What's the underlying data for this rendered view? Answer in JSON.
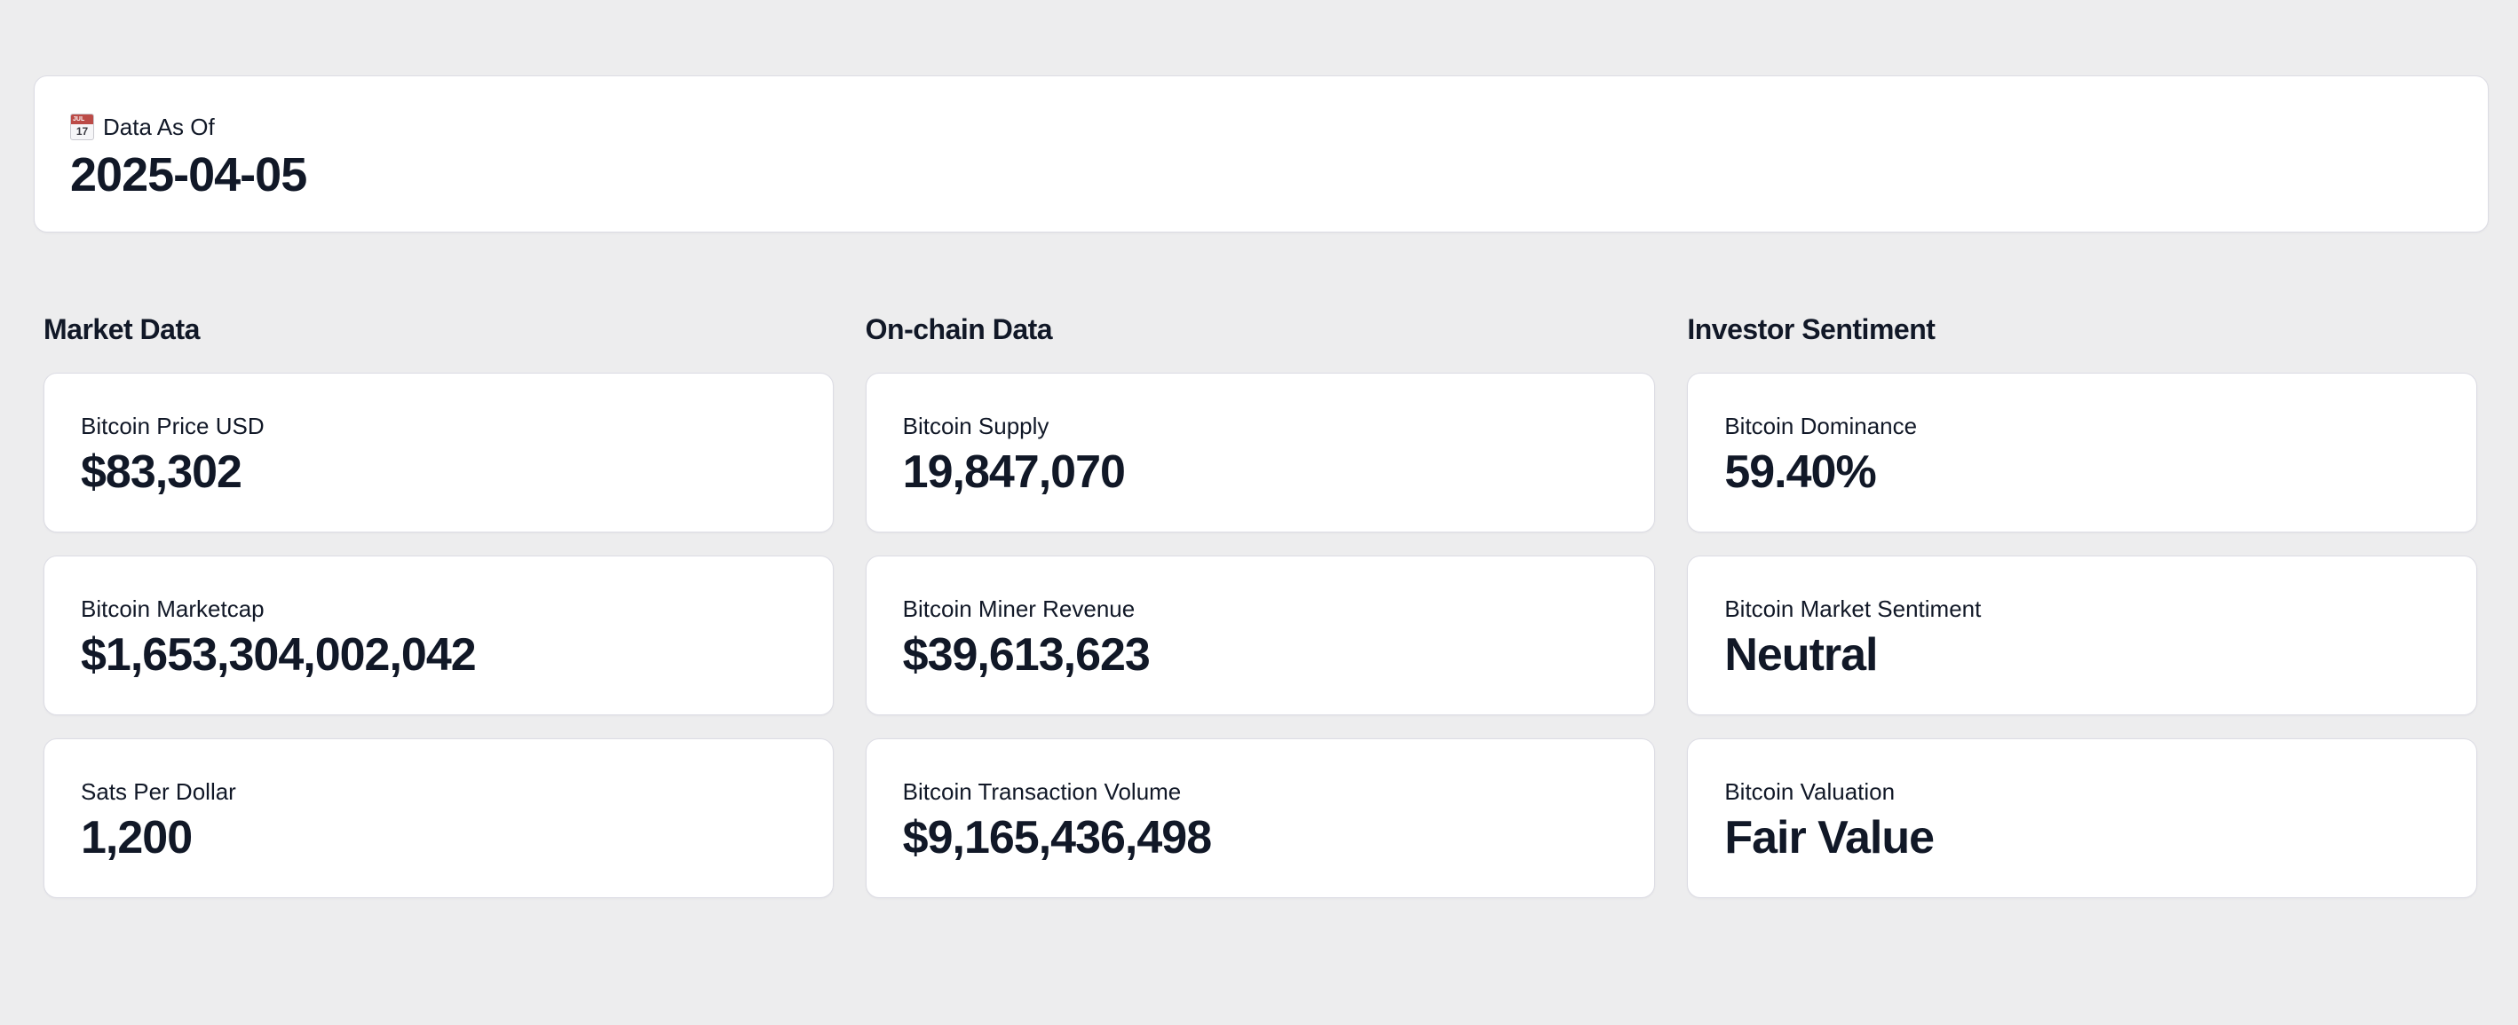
{
  "header": {
    "label": "Data As Of",
    "value": "2025-04-05",
    "icon": "calendar-icon",
    "calendar_month": "JUL",
    "calendar_day": "17"
  },
  "sections": [
    {
      "title": "Market Data",
      "cards": [
        {
          "label": "Bitcoin Price USD",
          "value": "$83,302"
        },
        {
          "label": "Bitcoin Marketcap",
          "value": "$1,653,304,002,042"
        },
        {
          "label": "Sats Per Dollar",
          "value": "1,200"
        }
      ]
    },
    {
      "title": "On-chain Data",
      "cards": [
        {
          "label": "Bitcoin Supply",
          "value": "19,847,070"
        },
        {
          "label": "Bitcoin Miner Revenue",
          "value": "$39,613,623"
        },
        {
          "label": "Bitcoin Transaction Volume",
          "value": "$9,165,436,498"
        }
      ]
    },
    {
      "title": "Investor Sentiment",
      "cards": [
        {
          "label": "Bitcoin Dominance",
          "value": "59.40%"
        },
        {
          "label": "Bitcoin Market Sentiment",
          "value": "Neutral"
        },
        {
          "label": "Bitcoin Valuation",
          "value": "Fair Value"
        }
      ]
    }
  ],
  "colors": {
    "background": "#ededee",
    "card_background": "#ffffff",
    "card_border": "#dcdce4",
    "text_primary": "#111827",
    "calendar_red": "#bc4b47"
  }
}
